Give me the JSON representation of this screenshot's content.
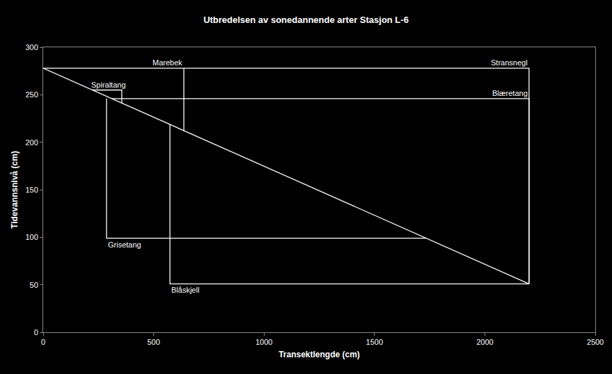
{
  "chart_data": {
    "type": "line",
    "title": "Utbredelsen av sonedannende arter Stasjon L-6",
    "x_label": "Transektlengde (cm)",
    "y_label": "Tidevannsnivå (cm)",
    "xlim": [
      0,
      2500
    ],
    "xticks": [
      0,
      500,
      1000,
      1500,
      2000,
      2500
    ],
    "ylim": [
      0,
      300
    ],
    "yticks": [
      0,
      50,
      100,
      150,
      200,
      250,
      300
    ],
    "grid": false,
    "series": [
      {
        "color": "#ffffff",
        "x": [
          0,
          2200
        ],
        "values": [
          278,
          51
        ]
      },
      {
        "name": "Stransnegl",
        "color": "#ffffff",
        "x": [
          0,
          2200,
          2200
        ],
        "values": [
          278,
          278,
          51
        ]
      },
      {
        "name": "Blæretang",
        "color": "#ffffff",
        "x": [
          310,
          2200,
          2200
        ],
        "values": [
          246,
          246,
          51
        ]
      },
      {
        "name": "Marebek",
        "color": "#ffffff",
        "x": [
          637,
          637
        ],
        "values": [
          278,
          212
        ]
      },
      {
        "name": "Spiraltang",
        "color": "#ffffff",
        "x": [
          223,
          356,
          356
        ],
        "values": [
          255,
          255,
          241
        ]
      },
      {
        "name": "Grisetang",
        "color": "#ffffff",
        "x": [
          287,
          287,
          1735
        ],
        "values": [
          246,
          99,
          99
        ]
      },
      {
        "name": "Blåskjell",
        "color": "#ffffff",
        "x": [
          574,
          574,
          2200
        ],
        "values": [
          219,
          51,
          51
        ]
      }
    ]
  }
}
